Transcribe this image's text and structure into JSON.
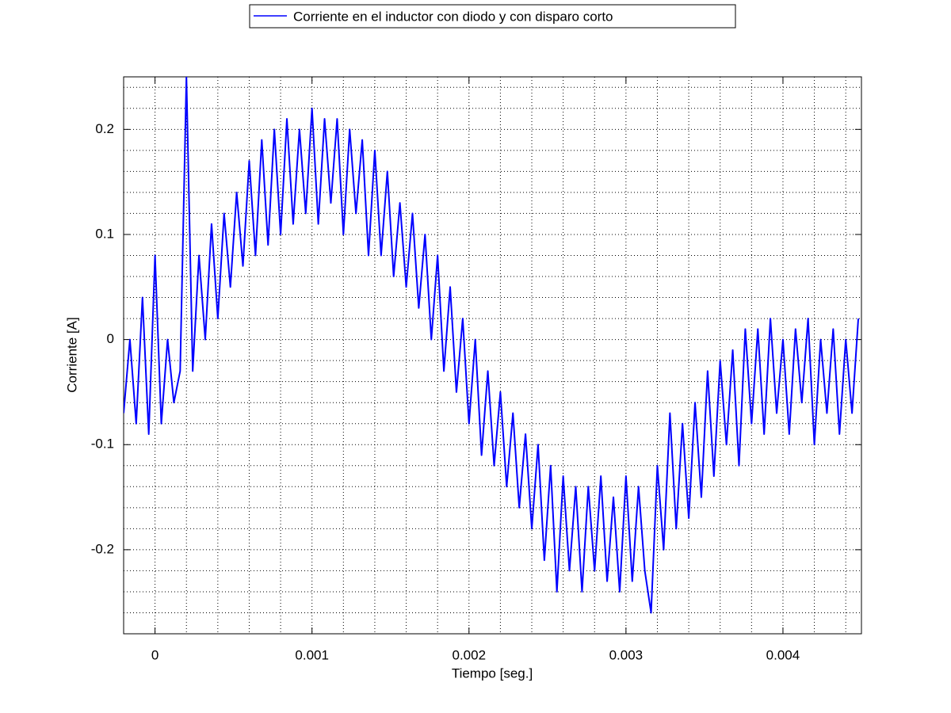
{
  "chart_data": {
    "type": "line",
    "xlabel": "Tiempo [seg.]",
    "ylabel": "Corriente [A]",
    "xlim": [
      -0.0002,
      0.0045
    ],
    "ylim": [
      -0.28,
      0.25
    ],
    "xticks": [
      0,
      0.001,
      0.002,
      0.003,
      0.004
    ],
    "yticks": [
      -0.2,
      -0.1,
      0,
      0.1,
      0.2
    ],
    "grid": true,
    "minor_grid": true,
    "legend": "top",
    "x": [
      -0.0002,
      -0.00016,
      -0.00012,
      -8e-05,
      -4e-05,
      0,
      4e-05,
      8e-05,
      0.00012,
      0.00016,
      0.0002,
      0.00024,
      0.00028,
      0.00032,
      0.00036,
      0.0004,
      0.00044,
      0.00048,
      0.00052,
      0.00056,
      0.0006,
      0.00064,
      0.00068,
      0.00072,
      0.00076,
      0.0008,
      0.00084,
      0.00088,
      0.00092,
      0.00096,
      0.001,
      0.00104,
      0.00108,
      0.00112,
      0.00116,
      0.0012,
      0.00124,
      0.00128,
      0.00132,
      0.00136,
      0.0014,
      0.00144,
      0.00148,
      0.00152,
      0.00156,
      0.0016,
      0.00164,
      0.00168,
      0.00172,
      0.00176,
      0.0018,
      0.00184,
      0.00188,
      0.00192,
      0.00196,
      0.002,
      0.00204,
      0.00208,
      0.00212,
      0.00216,
      0.0022,
      0.00224,
      0.00228,
      0.00232,
      0.00236,
      0.0024,
      0.00244,
      0.00248,
      0.00252,
      0.00256,
      0.0026,
      0.00264,
      0.00268,
      0.00272,
      0.00276,
      0.0028,
      0.00284,
      0.00288,
      0.00292,
      0.00296,
      0.003,
      0.00304,
      0.00308,
      0.00312,
      0.00316,
      0.0032,
      0.00324,
      0.00328,
      0.00332,
      0.00336,
      0.0034,
      0.00344,
      0.00348,
      0.00352,
      0.00356,
      0.0036,
      0.00364,
      0.00368,
      0.00372,
      0.00376,
      0.0038,
      0.00384,
      0.00388,
      0.00392,
      0.00396,
      0.004,
      0.00404,
      0.00408,
      0.00412,
      0.00416,
      0.0042,
      0.00424,
      0.00428,
      0.00432,
      0.00436,
      0.0044,
      0.00444,
      0.00448
    ],
    "series": [
      {
        "name": "Corriente en el inductor con diodo y con disparo corto",
        "color": "#0000ff",
        "values": [
          -0.07,
          0.0,
          -0.08,
          0.04,
          -0.09,
          0.08,
          -0.08,
          0.0,
          -0.06,
          -0.03,
          0.25,
          -0.03,
          0.08,
          0.0,
          0.11,
          0.02,
          0.12,
          0.05,
          0.14,
          0.07,
          0.17,
          0.08,
          0.19,
          0.09,
          0.2,
          0.1,
          0.21,
          0.11,
          0.2,
          0.12,
          0.22,
          0.11,
          0.21,
          0.13,
          0.21,
          0.1,
          0.2,
          0.12,
          0.19,
          0.08,
          0.18,
          0.08,
          0.16,
          0.06,
          0.13,
          0.05,
          0.12,
          0.03,
          0.1,
          0.0,
          0.08,
          -0.03,
          0.05,
          -0.05,
          0.02,
          -0.08,
          0.0,
          -0.11,
          -0.03,
          -0.12,
          -0.05,
          -0.14,
          -0.07,
          -0.16,
          -0.09,
          -0.18,
          -0.1,
          -0.21,
          -0.12,
          -0.24,
          -0.13,
          -0.22,
          -0.14,
          -0.24,
          -0.14,
          -0.22,
          -0.13,
          -0.23,
          -0.15,
          -0.24,
          -0.13,
          -0.23,
          -0.14,
          -0.22,
          -0.26,
          -0.12,
          -0.2,
          -0.07,
          -0.18,
          -0.08,
          -0.17,
          -0.06,
          -0.15,
          -0.03,
          -0.13,
          -0.02,
          -0.1,
          -0.01,
          -0.12,
          0.01,
          -0.08,
          0.01,
          -0.09,
          0.02,
          -0.07,
          0.0,
          -0.09,
          0.01,
          -0.06,
          0.02,
          -0.1,
          0.0,
          -0.07,
          0.01,
          -0.09,
          0.0,
          -0.07,
          0.02
        ]
      }
    ]
  }
}
